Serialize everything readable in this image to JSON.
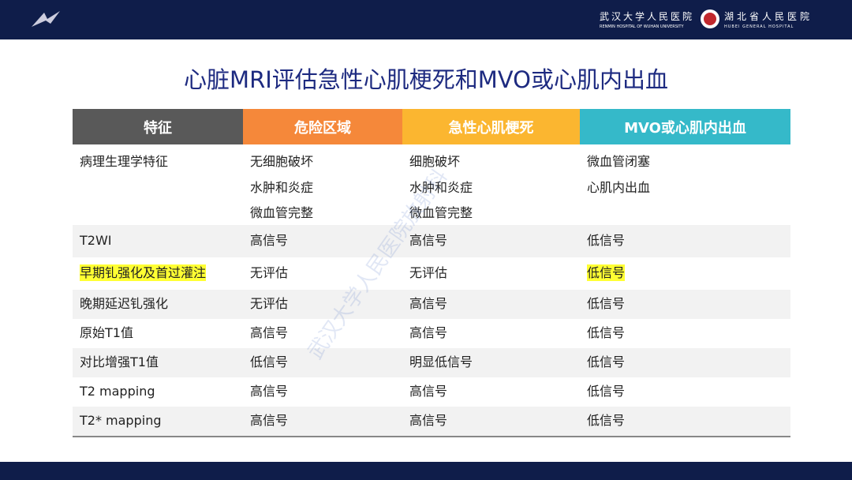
{
  "header": {
    "hospital_1": "武汉大学人民医院",
    "hospital_1_en": "RENMIN HOSPITAL OF WUHAN UNIVERSITY",
    "hospital_2": "湖北省人民医院",
    "hospital_2_en": "HUBEI GENERAL HOSPITAL"
  },
  "title": "心脏MRI评估急性心肌梗死和MVO或心肌内出血",
  "watermark": "武汉大学人民医院放射科",
  "table": {
    "columns": [
      {
        "label": "特征",
        "color": "#595959"
      },
      {
        "label": "危险区域",
        "color": "#f5883a"
      },
      {
        "label": "急性心肌梗死",
        "color": "#fbb630"
      },
      {
        "label": "MVO或心肌内出血",
        "color": "#35b9c9"
      }
    ],
    "rows": [
      [
        [
          "病理生理学特征"
        ],
        [
          "无细胞破坏",
          "水肿和炎症",
          "微血管完整"
        ],
        [
          "细胞破坏",
          "水肿和炎症",
          "微血管完整"
        ],
        [
          "微血管闭塞",
          "心肌内出血"
        ]
      ],
      [
        [
          "T2WI"
        ],
        [
          "高信号"
        ],
        [
          "高信号"
        ],
        [
          "低信号"
        ]
      ],
      [
        [
          "早期钆强化及首过灌注"
        ],
        [
          "无评估"
        ],
        [
          "无评估"
        ],
        [
          "低信号"
        ]
      ],
      [
        [
          "晚期延迟钆强化"
        ],
        [
          "无评估"
        ],
        [
          "高信号"
        ],
        [
          "低信号"
        ]
      ],
      [
        [
          "原始T1值"
        ],
        [
          "高信号"
        ],
        [
          "高信号"
        ],
        [
          "低信号"
        ]
      ],
      [
        [
          "对比增强T1值"
        ],
        [
          "低信号"
        ],
        [
          "明显低信号"
        ],
        [
          "低信号"
        ]
      ],
      [
        [
          "T2 mapping"
        ],
        [
          "高信号"
        ],
        [
          "高信号"
        ],
        [
          "低信号"
        ]
      ],
      [
        [
          "T2* mapping"
        ],
        [
          "高信号"
        ],
        [
          "高信号"
        ],
        [
          "低信号"
        ]
      ]
    ],
    "highlight_color": "#ffff33",
    "highlighted_cells": [
      [
        2,
        0
      ],
      [
        2,
        3
      ]
    ]
  }
}
